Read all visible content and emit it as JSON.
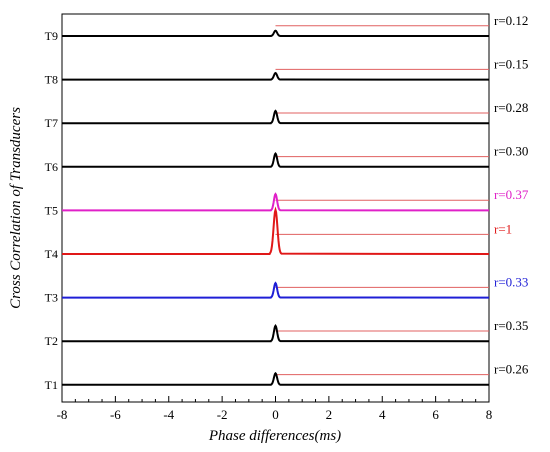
{
  "chart_data": {
    "type": "line",
    "xlabel": "Phase differences(ms)",
    "ylabel": "Cross Correlation of Transducers",
    "xlim": [
      -8,
      8
    ],
    "x_ticks": [
      "-8",
      "-6",
      "-4",
      "-2",
      "0",
      "2",
      "4",
      "6",
      "8"
    ],
    "grid": false,
    "series": [
      {
        "name": "T1",
        "r_label": "r=0.26",
        "color": "#000000",
        "peak_x": 0,
        "peak_amplitude": 0.26
      },
      {
        "name": "T2",
        "r_label": "r=0.35",
        "color": "#000000",
        "peak_x": 0,
        "peak_amplitude": 0.35
      },
      {
        "name": "T3",
        "r_label": "r=0.33",
        "color": "#1f1fd6",
        "peak_x": 0,
        "peak_amplitude": 0.33
      },
      {
        "name": "T4",
        "r_label": "r=1",
        "color": "#e01818",
        "peak_x": 0,
        "peak_amplitude": 1.0
      },
      {
        "name": "T5",
        "r_label": "r=0.37",
        "color": "#e020c8",
        "peak_x": 0,
        "peak_amplitude": 0.37
      },
      {
        "name": "T6",
        "r_label": "r=0.30",
        "color": "#000000",
        "peak_x": 0,
        "peak_amplitude": 0.3
      },
      {
        "name": "T7",
        "r_label": "r=0.28",
        "color": "#000000",
        "peak_x": 0,
        "peak_amplitude": 0.28
      },
      {
        "name": "T8",
        "r_label": "r=0.15",
        "color": "#000000",
        "peak_x": 0,
        "peak_amplitude": 0.15
      },
      {
        "name": "T9",
        "r_label": "r=0.12",
        "color": "#000000",
        "peak_x": 0,
        "peak_amplitude": 0.12
      }
    ],
    "reference_line_color": "#e06060"
  }
}
